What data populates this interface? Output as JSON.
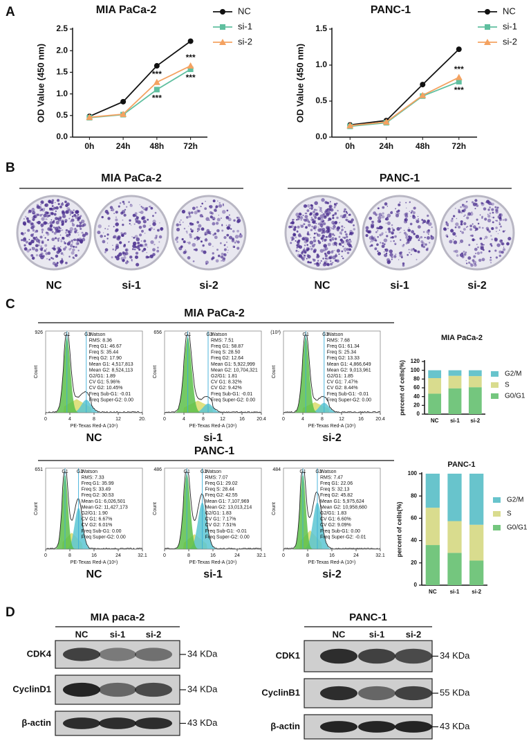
{
  "panel_labels": [
    "A",
    "B",
    "C",
    "D"
  ],
  "chart_data": [
    {
      "type": "line",
      "title": "MIA PaCa-2",
      "y_label": "OD Value (450 nm)",
      "categories": [
        "0h",
        "24h",
        "48h",
        "72h"
      ],
      "series": [
        {
          "name": "NC",
          "color": "#111111",
          "marker": "circle",
          "values": [
            0.48,
            0.82,
            1.65,
            2.22
          ]
        },
        {
          "name": "si-1",
          "color": "#5fbf9f",
          "marker": "square",
          "values": [
            0.45,
            0.52,
            1.1,
            1.57
          ]
        },
        {
          "name": "si-2",
          "color": "#f4a261",
          "marker": "triangle",
          "values": [
            0.46,
            0.53,
            1.27,
            1.65
          ]
        }
      ],
      "ylim": [
        0,
        2.5
      ],
      "yticks": [
        {
          "value": 0,
          "label": "0.0"
        },
        0.5,
        {
          "value": 1,
          "label": "1.0"
        },
        1.5,
        {
          "value": 2,
          "label": "2.0"
        },
        2.5
      ],
      "legend": "right",
      "annotations": [
        {
          "text": "***",
          "category": "48h",
          "series": "si-2"
        },
        {
          "text": "***",
          "category": "48h",
          "series": "si-1"
        },
        {
          "text": "***",
          "category": "72h",
          "series": "si-2"
        },
        {
          "text": "***",
          "category": "72h",
          "series": "si-1"
        }
      ]
    },
    {
      "type": "line",
      "title": "PANC-1",
      "y_label": "OD Value (450 nm)",
      "categories": [
        "0h",
        "24h",
        "48h",
        "72h"
      ],
      "series": [
        {
          "name": "NC",
          "color": "#111111",
          "marker": "circle",
          "values": [
            0.17,
            0.23,
            0.73,
            1.22
          ]
        },
        {
          "name": "si-1",
          "color": "#5fbf9f",
          "marker": "square",
          "values": [
            0.15,
            0.2,
            0.57,
            0.77
          ]
        },
        {
          "name": "si-2",
          "color": "#f4a261",
          "marker": "triangle",
          "values": [
            0.16,
            0.21,
            0.58,
            0.83
          ]
        }
      ],
      "ylim": [
        0,
        1.5
      ],
      "yticks": [
        {
          "value": 0,
          "label": "0.0"
        },
        0.5,
        {
          "value": 1,
          "label": "1.0"
        },
        1.5
      ],
      "legend": "right",
      "annotations": [
        {
          "text": "***",
          "category": "72h",
          "series": "si-2"
        },
        {
          "text": "***",
          "category": "72h",
          "series": "si-1"
        }
      ]
    },
    {
      "type": "stacked_bar",
      "title": "MIA PaCa-2",
      "y_label": "percent of cells(%)",
      "categories": [
        "NC",
        "si-1",
        "si-2"
      ],
      "series": [
        {
          "name": "G0/G1",
          "color": "#74c67e",
          "values": [
            46.67,
            58.87,
            61.34
          ]
        },
        {
          "name": "S",
          "color": "#d9dc8e",
          "values": [
            35.44,
            28.5,
            25.34
          ]
        },
        {
          "name": "G2/M",
          "color": "#68c4cc",
          "values": [
            17.9,
            12.64,
            13.33
          ]
        }
      ],
      "ylim": [
        0,
        120
      ],
      "yticks": [
        0,
        20,
        40,
        60,
        80,
        100,
        120
      ],
      "legend": "right"
    },
    {
      "type": "stacked_bar",
      "title": "PANC-1",
      "y_label": "percent of cells(%)",
      "categories": [
        "NC",
        "si-1",
        "si-2"
      ],
      "series": [
        {
          "name": "G0/G1",
          "color": "#74c67e",
          "values": [
            35.99,
            29.02,
            22.06
          ]
        },
        {
          "name": "S",
          "color": "#d9dc8e",
          "values": [
            33.49,
            28.44,
            32.13
          ]
        },
        {
          "name": "G2/M",
          "color": "#68c4cc",
          "values": [
            30.53,
            42.55,
            45.82
          ]
        }
      ],
      "ylim": [
        0,
        100
      ],
      "yticks": [
        0,
        20,
        40,
        60,
        80,
        100
      ],
      "legend": "right"
    }
  ],
  "colony": {
    "groups": [
      {
        "title": "MIA PaCa-2",
        "labels": [
          "NC",
          "si-1",
          "si-2"
        ]
      },
      {
        "title": "PANC-1",
        "labels": [
          "NC",
          "si-1",
          "si-2"
        ]
      }
    ]
  },
  "flow": {
    "groups": [
      {
        "title": "MIA PaCa-2",
        "x_label": "PE-Texas Red-A (10⁶)",
        "y_label": "Count",
        "panels": [
          {
            "label": "NC",
            "y_max": "926",
            "x_ticks": [
              "0",
              "4",
              "8",
              "12",
              "20."
            ],
            "gates": [
              "G1",
              "G2"
            ],
            "stats": [
              "Watson",
              "RMS: 8.36",
              "Freq G1: 46.67",
              "Freq S: 35.44",
              "Freq G2: 17.90",
              "Mean G1: 4,517,813",
              "Mean G2: 8,524,113",
              "G2/G1: 1.89",
              "CV G1: 5.96%",
              "CV G2: 10.45%",
              "Freq Sub-G1: -0.01",
              "Freq Super-G2: 0.00"
            ]
          },
          {
            "label": "si-1",
            "y_max": "656",
            "x_ticks": [
              "0",
              "4",
              "8",
              "12",
              "16",
              "20.4"
            ],
            "gates": [
              "G1",
              "G2"
            ],
            "stats": [
              "Watson",
              "RMS: 7.51",
              "Freq G1: 58.87",
              "Freq S: 28.50",
              "Freq G2: 12.64",
              "Mean G1: 5,922,999",
              "Mean G2: 10,704,321",
              "G2/G1: 1.81",
              "CV G1: 8.32%",
              "CV G2: 9.42%",
              "Freq Sub-G1: -0.01",
              "Freq Super-G2: 0.00"
            ]
          },
          {
            "label": "si-2",
            "y_max": "(10³)",
            "x_ticks": [
              "0",
              "4",
              "8",
              "12",
              "16",
              "20.4"
            ],
            "gates": [
              "G1",
              "G2"
            ],
            "stats": [
              "Watson",
              "RMS: 7.68",
              "Freq G1: 61.34",
              "Freq S: 25.34",
              "Freq G2: 13.33",
              "Mean G1: 4,866,649",
              "Mean G2: 9,013,961",
              "G2/G1: 1.85",
              "CV G1: 7.47%",
              "CV G2: 8.44%",
              "Freq Sub-G1: -0.01",
              "Freq Super-G2: 0.00"
            ]
          }
        ]
      },
      {
        "title": "PANC-1",
        "x_label": "PE-Texas Red-A (10⁶)",
        "y_label": "Count",
        "panels": [
          {
            "label": "NC",
            "y_max": "651",
            "x_ticks": [
              "0",
              "8",
              "16",
              "24",
              "32.1"
            ],
            "gates": [
              "G1",
              "G2"
            ],
            "stats": [
              "Watson",
              "RMS: 7.33",
              "Freq G1: 35.99",
              "Freq S: 33.49",
              "Freq G2: 30.53",
              "Mean G1: 6,026,501",
              "Mean G2: 11,427,173",
              "G2/G1: 1.90",
              "CV G1: 6.67%",
              "CV G2: 6.01%",
              "Freq Sub-G1: 0.00",
              "Freq Super-G2: 0.00"
            ]
          },
          {
            "label": "si-1",
            "y_max": "486",
            "x_ticks": [
              "0",
              "8",
              "16",
              "24",
              "32.1"
            ],
            "gates": [
              "G1",
              "G2"
            ],
            "stats": [
              "Watson",
              "RMS: 7.07",
              "Freq G1: 29.02",
              "Freq S: 28.44",
              "Freq G2: 42.55",
              "Mean G1: 7,107,969",
              "Mean G2: 13,013,214",
              "G2/G1: 1.83",
              "CV G1: 7.17%",
              "CV G2: 7.51%",
              "Freq Sub-G1: -0.01",
              "Freq Super-G2: 0.00"
            ]
          },
          {
            "label": "si-2",
            "y_max": "484",
            "x_ticks": [
              "0",
              "8",
              "16",
              "24",
              "32.1"
            ],
            "gates": [
              "G1",
              "G2"
            ],
            "stats": [
              "Watson",
              "RMS: 7.47",
              "Freq G1: 22.06",
              "Freq S: 32.13",
              "Freq G2: 45.82",
              "Mean G1: 5,975,624",
              "Mean G2: 10,958,680",
              "G2/G1: 1.83",
              "CV G1: 6.60%",
              "CV G2: 9.09%",
              "Freq Sub-G1: 0.00",
              "Freq Super-G2: -0.01"
            ]
          }
        ]
      }
    ]
  },
  "western": {
    "groups": [
      {
        "title": "MIA paca-2",
        "lanes": [
          "NC",
          "si-1",
          "si-2"
        ],
        "rows": [
          {
            "protein": "CDK4",
            "size": "34 KDa"
          },
          {
            "protein": "CyclinD1",
            "size": "34 KDa"
          },
          {
            "protein": "β-actin",
            "size": "43 KDa"
          }
        ]
      },
      {
        "title": "PANC-1",
        "lanes": [
          "NC",
          "si-1",
          "si-2"
        ],
        "rows": [
          {
            "protein": "CDK1",
            "size": "34 KDa"
          },
          {
            "protein": "CyclinB1",
            "size": "55 KDa"
          },
          {
            "protein": "β-actin",
            "size": "43 KDa"
          }
        ]
      }
    ]
  }
}
